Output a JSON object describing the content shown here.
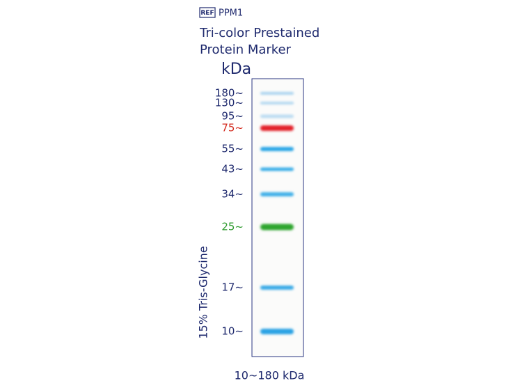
{
  "header": {
    "ref": "REF",
    "code": "PPM1",
    "title_lines": [
      "Tri-color Prestained",
      "Protein Marker"
    ]
  },
  "unit": "kDa",
  "gel": {
    "side_label": "15% Tris-Glycine",
    "footer": "10~180 kDa",
    "bands": [
      {
        "label": "180~",
        "color": "#a9d3ef",
        "label_color": "#1f2a6e"
      },
      {
        "label": "130~",
        "color": "#b3d8f1",
        "label_color": "#1f2a6e"
      },
      {
        "label": "95~",
        "color": "#bcdcf2",
        "label_color": "#1f2a6e"
      },
      {
        "label": "75~",
        "color": "#e3202a",
        "label_color": "#d32a1e"
      },
      {
        "label": "55~",
        "color": "#2aa6e6",
        "label_color": "#1f2a6e"
      },
      {
        "label": "43~",
        "color": "#3aaee8",
        "label_color": "#1f2a6e"
      },
      {
        "label": "34~",
        "color": "#42b0e8",
        "label_color": "#1f2a6e"
      },
      {
        "label": "25~",
        "color": "#2ea52e",
        "label_color": "#2e9a2e"
      },
      {
        "label": "17~",
        "color": "#3aaae6",
        "label_color": "#1f2a6e"
      },
      {
        "label": "10~",
        "color": "#2aa2e4",
        "label_color": "#1f2a6e"
      }
    ]
  }
}
